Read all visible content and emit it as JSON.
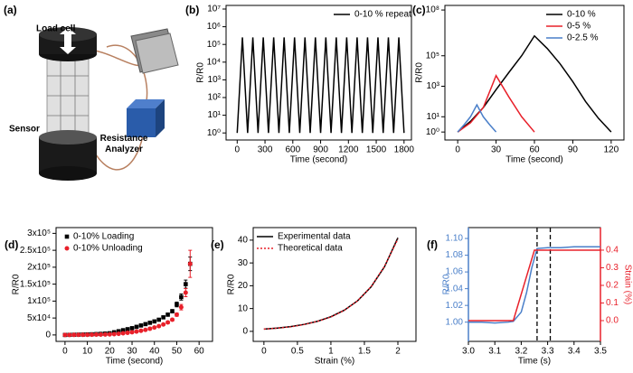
{
  "schematic": {
    "panel_label": "(a)",
    "labels": [
      "Load cell",
      "Sensor",
      "Resistance Analyzer"
    ]
  },
  "chart_data": [
    {
      "type": "line",
      "panel_label": "(b)",
      "xlabel": "Time (second)",
      "ylabel": "R/R0",
      "yscale": "log",
      "xlim": [
        -120,
        1880
      ],
      "xticks": [
        0,
        300,
        600,
        900,
        1200,
        1500,
        1800
      ],
      "ylim": [
        0.4,
        16000000
      ],
      "yticks": [
        {
          "value": 1,
          "label": "10⁰"
        },
        {
          "value": 10,
          "label": "10¹"
        },
        {
          "value": 100,
          "label": "10²"
        },
        {
          "value": 1000,
          "label": "10³"
        },
        {
          "value": 10000,
          "label": "10⁴"
        },
        {
          "value": 100000,
          "label": "10⁵"
        },
        {
          "value": 1000000,
          "label": "10⁶"
        },
        {
          "value": 10000000,
          "label": "10⁷"
        }
      ],
      "legend": "upper right",
      "series": [
        {
          "name": "0-10 % repeat",
          "color": "#000000",
          "x": [
            0,
            56.25,
            112.5,
            168.75,
            225,
            281.25,
            337.5,
            393.75,
            450,
            506.25,
            562.5,
            618.75,
            675,
            731.25,
            787.5,
            843.75,
            900,
            956.25,
            1012.5,
            1068.75,
            1125,
            1181.25,
            1237.5,
            1293.75,
            1350,
            1406.25,
            1462.5,
            1518.75,
            1575,
            1631.25,
            1687.5,
            1743.75,
            1800
          ],
          "values": [
            1,
            250000,
            1,
            250000,
            1,
            250000,
            1,
            250000,
            1,
            250000,
            1,
            250000,
            1,
            250000,
            1,
            250000,
            1,
            250000,
            1,
            250000,
            1,
            250000,
            1,
            250000,
            1,
            250000,
            1,
            250000,
            1,
            250000,
            1,
            250000,
            1
          ]
        }
      ]
    },
    {
      "type": "line",
      "panel_label": "(c)",
      "xlabel": "Time (second)",
      "ylabel": "R/R0",
      "yscale": "log",
      "xlim": [
        -10,
        130
      ],
      "xticks": [
        0,
        30,
        60,
        90,
        120
      ],
      "ylim": [
        0.3,
        200000000
      ],
      "yticks": [
        {
          "value": 1,
          "label": "10⁰"
        },
        {
          "value": 10,
          "label": "10¹"
        },
        {
          "value": 1000,
          "label": "10³"
        },
        {
          "value": 100000,
          "label": "10⁵"
        },
        {
          "value": 100000000,
          "label": "10⁸"
        }
      ],
      "legend": "upper right",
      "series": [
        {
          "name": "0-10 %",
          "color": "#000000",
          "x": [
            0,
            10,
            20,
            30,
            40,
            50,
            60,
            70,
            80,
            90,
            100,
            110,
            120
          ],
          "values": [
            1,
            5,
            40,
            600,
            8000,
            100000,
            2000000,
            300000,
            30000,
            2000,
            100,
            8,
            1
          ]
        },
        {
          "name": "0-5 %",
          "color": "#e8202a",
          "x": [
            0,
            10,
            20,
            30,
            40,
            50,
            60
          ],
          "values": [
            1,
            4,
            40,
            5000,
            200,
            10,
            1
          ]
        },
        {
          "name": "0-2.5 %",
          "color": "#4a7fc9",
          "x": [
            0,
            5,
            10,
            15,
            20,
            25,
            30
          ],
          "values": [
            1,
            3,
            10,
            60,
            10,
            3,
            1
          ]
        }
      ]
    },
    {
      "type": "scatter",
      "panel_label": "(d)",
      "xlabel": "Time (second)",
      "ylabel": "R/R0",
      "xlim": [
        -4,
        66
      ],
      "xticks": [
        0,
        10,
        20,
        30,
        40,
        50,
        60
      ],
      "ylim": [
        -19000,
        317000
      ],
      "yticks": [
        0,
        {
          "value": 50000,
          "label": "5x10⁴"
        },
        {
          "value": 100000,
          "label": "1x10⁵"
        },
        {
          "value": 150000,
          "label": "1.5x10⁵"
        },
        {
          "value": 200000,
          "label": "2x10⁵"
        },
        {
          "value": 250000,
          "label": "2.5x10⁵"
        },
        {
          "value": 300000,
          "label": "3x10⁵"
        }
      ],
      "legend": "upper left",
      "series": [
        {
          "name": "0-10% Loading",
          "color": "#000000",
          "marker": "square",
          "x": [
            0,
            2,
            4,
            6,
            8,
            10,
            12,
            14,
            16,
            18,
            20,
            22,
            24,
            26,
            28,
            30,
            32,
            34,
            36,
            38,
            40,
            42,
            44,
            46,
            48,
            50,
            52,
            54,
            56
          ],
          "values": [
            0,
            300,
            600,
            900,
            1200,
            1600,
            2000,
            2600,
            3200,
            4000,
            5000,
            8000,
            11000,
            14000,
            17000,
            20000,
            24000,
            28000,
            32000,
            36000,
            40000,
            45000,
            52000,
            60000,
            70000,
            90000,
            112000,
            150000,
            210000
          ],
          "errors": [
            1000,
            1000,
            1000,
            1000,
            1000,
            1000,
            1000,
            1000,
            1000,
            1000,
            1500,
            1500,
            1500,
            2000,
            2000,
            2000,
            2500,
            2500,
            3000,
            3000,
            3000,
            3500,
            4000,
            4500,
            5000,
            7000,
            9000,
            12000,
            20000
          ]
        },
        {
          "name": "0-10% Unloading",
          "color": "#e8202a",
          "marker": "circle",
          "x": [
            0,
            2,
            4,
            6,
            8,
            10,
            12,
            14,
            16,
            18,
            20,
            22,
            24,
            26,
            28,
            30,
            32,
            34,
            36,
            38,
            40,
            42,
            44,
            46,
            48,
            50,
            52,
            54,
            56
          ],
          "values": [
            0,
            100,
            200,
            300,
            400,
            500,
            700,
            900,
            1100,
            1400,
            1800,
            2500,
            3500,
            5000,
            6500,
            8000,
            10000,
            12500,
            15000,
            18500,
            22000,
            26000,
            31000,
            37000,
            45000,
            60000,
            82000,
            125000,
            210000
          ],
          "errors": [
            1000,
            1000,
            1000,
            1000,
            1000,
            1000,
            1000,
            1000,
            1000,
            1000,
            1000,
            1000,
            1500,
            1500,
            1500,
            1500,
            2000,
            2000,
            2000,
            2500,
            2500,
            3000,
            3000,
            3500,
            4000,
            5000,
            8000,
            12000,
            40000
          ]
        }
      ]
    },
    {
      "type": "line",
      "panel_label": "(e)",
      "xlabel": "Strain (%)",
      "ylabel": "R/R0",
      "xlim": [
        -0.16,
        2.27
      ],
      "xticks": [
        0,
        0.5,
        1,
        1.5,
        2
      ],
      "ylim": [
        -4.4,
        45.5
      ],
      "yticks": [
        0,
        10,
        20,
        30,
        40
      ],
      "legend": "upper left",
      "series": [
        {
          "name": "Experimental data",
          "color": "#000000",
          "x": [
            0,
            0.2,
            0.4,
            0.6,
            0.8,
            1,
            1.2,
            1.4,
            1.6,
            1.8,
            2
          ],
          "values": [
            1,
            1.45,
            2.1,
            3.05,
            4.41,
            6.4,
            9.28,
            13.44,
            19.5,
            28.3,
            41
          ]
        },
        {
          "name": "Theoretical data",
          "color": "#e8202a",
          "dash": "dotted",
          "x": [
            0,
            0.2,
            0.4,
            0.6,
            0.8,
            1,
            1.2,
            1.4,
            1.6,
            1.8,
            2
          ],
          "values": [
            1,
            1.4,
            2,
            3,
            4.4,
            6.3,
            9.2,
            13.4,
            19.6,
            28.5,
            40.5
          ]
        }
      ]
    },
    {
      "type": "line",
      "panel_label": "(f)",
      "xlabel": "Time (s)",
      "ylabel": "R/R0",
      "y2label": "Strain (%)",
      "xlim": [
        3,
        3.5
      ],
      "xticks": [
        {
          "value": 3,
          "label": "3.0"
        },
        3.1,
        3.2,
        3.3,
        3.4,
        3.5
      ],
      "ylim": [
        0.977,
        1.113
      ],
      "yticks": [
        {
          "value": 1,
          "label": "1.00"
        },
        1.02,
        1.04,
        1.06,
        1.08,
        {
          "value": 1.1,
          "label": "1.10"
        }
      ],
      "y2lim": [
        -0.118,
        0.528
      ],
      "y2ticks": [
        {
          "value": 0,
          "label": "0.0"
        },
        0.1,
        0.2,
        0.3,
        0.4
      ],
      "vlines": [
        3.26,
        3.31
      ],
      "series": [
        {
          "color": "#4a7fc9",
          "x": [
            3,
            3.05,
            3.1,
            3.15,
            3.17,
            3.2,
            3.22,
            3.24,
            3.26,
            3.3,
            3.35,
            3.4,
            3.45,
            3.5
          ],
          "values": [
            1,
            1,
            0.999,
            1,
            1.001,
            1.012,
            1.035,
            1.065,
            1.088,
            1.089,
            1.089,
            1.09,
            1.09,
            1.09
          ]
        },
        {
          "color": "#e8202a",
          "axis": "y2",
          "x": [
            3,
            3.1,
            3.17,
            3.25,
            3.3,
            3.4,
            3.5
          ],
          "values": [
            0,
            0,
            0,
            0.4,
            0.4,
            0.4,
            0.4
          ]
        }
      ]
    }
  ]
}
